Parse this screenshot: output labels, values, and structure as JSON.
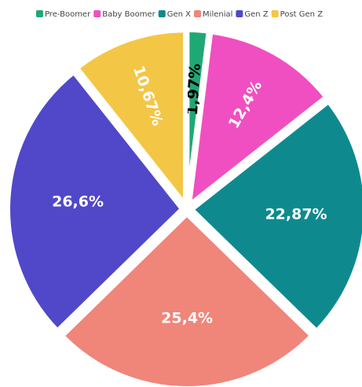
{
  "chart_data": {
    "type": "pie",
    "categories": [
      "Pre-Boomer",
      "Baby Boomer",
      "Gen X",
      "Milenial",
      "Gen Z",
      "Post Gen Z"
    ],
    "values": [
      1.97,
      12.4,
      22.87,
      25.4,
      26.6,
      10.67
    ],
    "value_labels": [
      "1,97%",
      "12,4%",
      "22,87%",
      "25,4%",
      "26,6%",
      "10,67%"
    ],
    "colors": [
      "#1fa874",
      "#f04fc1",
      "#0e8a8f",
      "#f0857a",
      "#5048c8",
      "#f4c645"
    ],
    "legend": "top"
  }
}
